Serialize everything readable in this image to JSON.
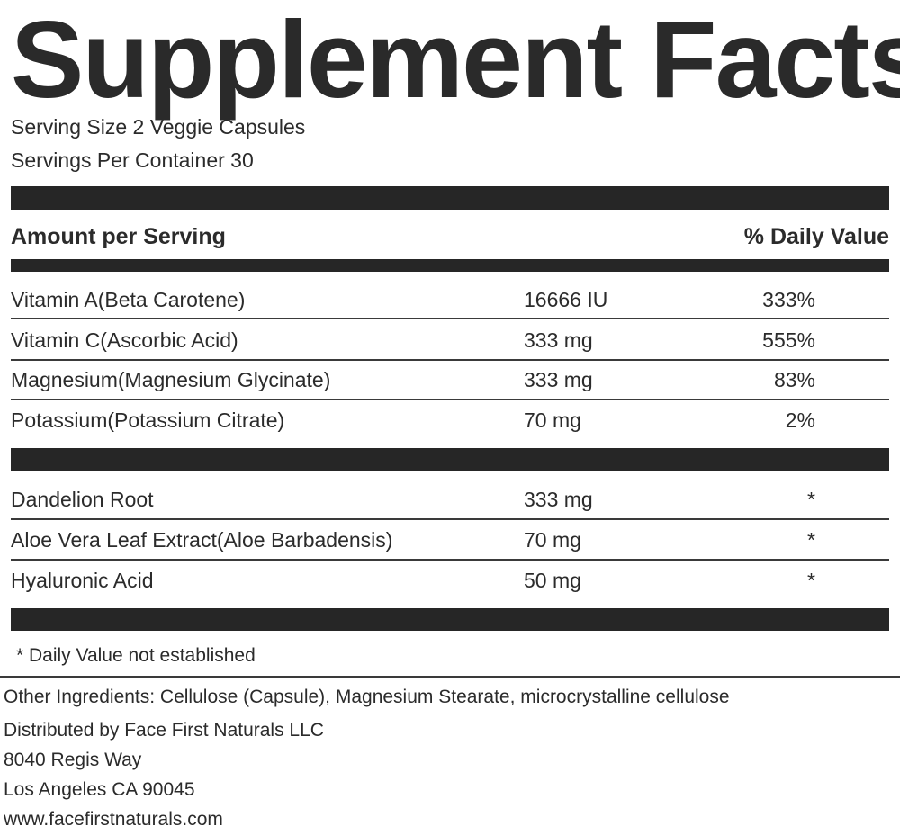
{
  "label": {
    "title": "Supplement Facts",
    "serving_size": "Serving Size 2 Veggie Capsules",
    "servings_per_container": "Servings Per Container 30",
    "header_left": "Amount per Serving",
    "header_right": "% Daily Value",
    "vitamins": [
      {
        "name": "Vitamin A(Beta Carotene)",
        "amount": "16666 IU",
        "dv": "333%"
      },
      {
        "name": "Vitamin C(Ascorbic Acid)",
        "amount": "333 mg",
        "dv": "555%"
      },
      {
        "name": "Magnesium(Magnesium Glycinate)",
        "amount": "333 mg",
        "dv": "83%"
      },
      {
        "name": "Potassium(Potassium Citrate)",
        "amount": "70 mg",
        "dv": "2%"
      }
    ],
    "botanicals": [
      {
        "name": "Dandelion Root",
        "amount": "333 mg",
        "dv": "*"
      },
      {
        "name": "Aloe Vera Leaf Extract(Aloe Barbadensis)",
        "amount": "70 mg",
        "dv": "*"
      },
      {
        "name": "Hyaluronic Acid",
        "amount": "50 mg",
        "dv": "*"
      }
    ],
    "footnote": "* Daily Value not established"
  },
  "info": {
    "other_ingredients": "Other Ingredients: Cellulose (Capsule), Magnesium Stearate, microcrystalline cellulose",
    "distributor": "Distributed by Face First Naturals LLC",
    "address_line1": "8040 Regis Way",
    "address_line2": "Los Angeles CA 90045",
    "website": "www.facefirstnaturals.com"
  }
}
